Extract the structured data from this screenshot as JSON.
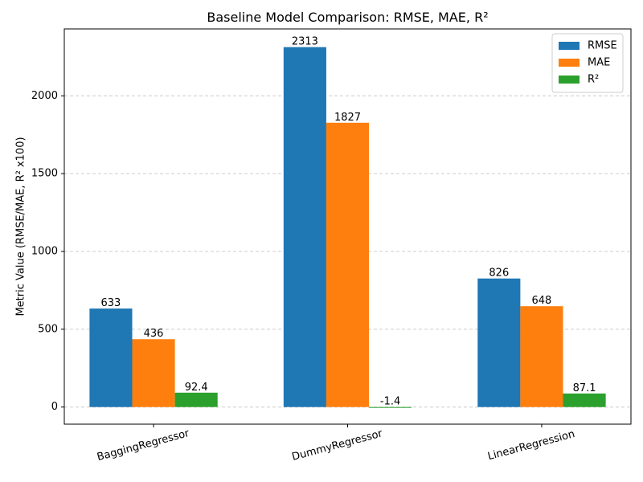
{
  "chart_data": {
    "type": "bar",
    "title": "Baseline Model Comparison: RMSE, MAE, R²",
    "xlabel": "",
    "ylabel": "Metric Value (RMSE/MAE, R² x100)",
    "categories": [
      "BaggingRegressor",
      "DummyRegressor",
      "LinearRegression"
    ],
    "series": [
      {
        "name": "RMSE",
        "values": [
          633,
          2313,
          826
        ],
        "labels": [
          "633",
          "2313",
          "826"
        ],
        "color": "#1f77b4"
      },
      {
        "name": "MAE",
        "values": [
          436,
          1827,
          648
        ],
        "labels": [
          "436",
          "1827",
          "648"
        ],
        "color": "#ff7f0e"
      },
      {
        "name": "R²",
        "values": [
          92.4,
          -1.4,
          87.1
        ],
        "labels": [
          "92.4",
          "-1.4",
          "87.1"
        ],
        "color": "#2ca02c"
      }
    ],
    "ylim": [
      -110,
      2430
    ],
    "yticks": [
      0,
      500,
      1000,
      1500,
      2000
    ],
    "ytick_labels": [
      "0",
      "500",
      "1000",
      "1500",
      "2000"
    ],
    "grid": "y-dashed",
    "legend_position": "top-right",
    "xtick_rotation": 15
  }
}
